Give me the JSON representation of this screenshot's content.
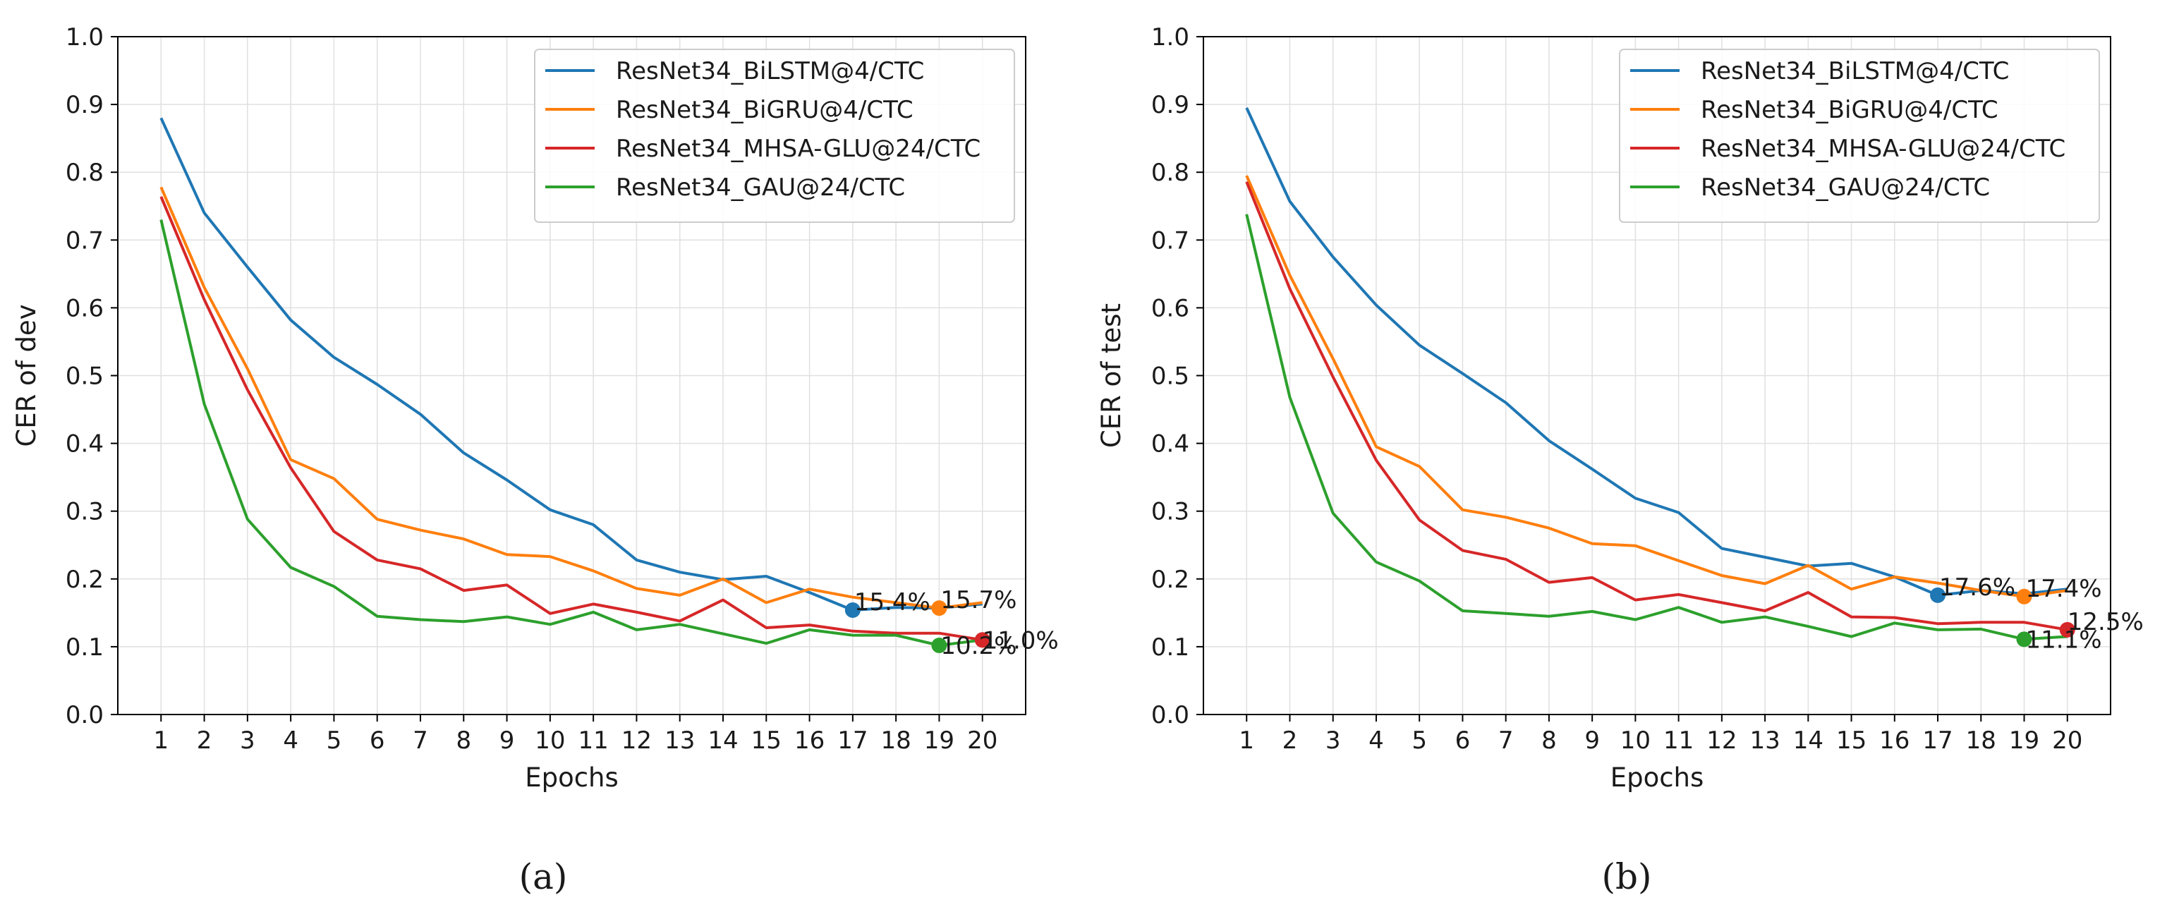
{
  "figure": {
    "subcaptions": [
      "(a)",
      "(b)"
    ]
  },
  "colors": {
    "ResNet34_BiLSTM@4/CTC": "#1f77b4",
    "ResNet34_BiGRU@4/CTC": "#ff7f0e",
    "ResNet34_MHSA-GLU@24/CTC": "#d62728",
    "ResNet34_GAU@24/CTC": "#2ca02c",
    "grid": "#e0e0e0",
    "axes": "#000000"
  },
  "chart_data": [
    {
      "type": "line",
      "title": "",
      "xlabel": "Epochs",
      "ylabel": "CER of dev",
      "ylim": [
        0.0,
        1.0
      ],
      "xlim": [
        0,
        21
      ],
      "grid": true,
      "legend_position": "top-right",
      "x": [
        1,
        2,
        3,
        4,
        5,
        6,
        7,
        8,
        9,
        10,
        11,
        12,
        13,
        14,
        15,
        16,
        17,
        18,
        19,
        20
      ],
      "yticks": [
        "0.0",
        "0.1",
        "0.2",
        "0.3",
        "0.4",
        "0.5",
        "0.6",
        "0.7",
        "0.8",
        "0.9",
        "1.0"
      ],
      "xticks": [
        "1",
        "2",
        "3",
        "4",
        "5",
        "6",
        "7",
        "8",
        "9",
        "10",
        "11",
        "12",
        "13",
        "14",
        "15",
        "16",
        "17",
        "18",
        "19",
        "20"
      ],
      "series": [
        {
          "name": "ResNet34_BiLSTM@4/CTC",
          "values": [
            0.88,
            0.74,
            0.66,
            0.582,
            0.527,
            0.487,
            0.443,
            0.386,
            0.346,
            0.302,
            0.28,
            0.228,
            0.21,
            0.199,
            0.204,
            0.18,
            0.154,
            0.158,
            0.157,
            0.163
          ],
          "best": {
            "epoch": 17,
            "value": 0.154,
            "label": "15.4%"
          }
        },
        {
          "name": "ResNet34_BiGRU@4/CTC",
          "values": [
            0.778,
            0.63,
            0.51,
            0.376,
            0.348,
            0.288,
            0.272,
            0.259,
            0.236,
            0.233,
            0.212,
            0.186,
            0.176,
            0.2,
            0.165,
            0.185,
            0.173,
            0.165,
            0.157,
            0.165
          ],
          "best": {
            "epoch": 19,
            "value": 0.157,
            "label": "15.7%"
          }
        },
        {
          "name": "ResNet34_MHSA-GLU@24/CTC",
          "values": [
            0.764,
            0.612,
            0.479,
            0.364,
            0.27,
            0.228,
            0.215,
            0.183,
            0.191,
            0.149,
            0.163,
            0.151,
            0.138,
            0.169,
            0.128,
            0.132,
            0.123,
            0.12,
            0.12,
            0.11
          ],
          "best": {
            "epoch": 20,
            "value": 0.11,
            "label": "11.0%"
          }
        },
        {
          "name": "ResNet34_GAU@24/CTC",
          "values": [
            0.73,
            0.458,
            0.288,
            0.217,
            0.189,
            0.145,
            0.14,
            0.137,
            0.144,
            0.133,
            0.151,
            0.125,
            0.133,
            0.119,
            0.105,
            0.125,
            0.117,
            0.117,
            0.102,
            0.11
          ],
          "best": {
            "epoch": 19,
            "value": 0.102,
            "label": "10.2%"
          }
        }
      ]
    },
    {
      "type": "line",
      "title": "",
      "xlabel": "Epochs",
      "ylabel": "CER of test",
      "ylim": [
        0.0,
        1.0
      ],
      "xlim": [
        0,
        21
      ],
      "grid": true,
      "legend_position": "top-right",
      "x": [
        1,
        2,
        3,
        4,
        5,
        6,
        7,
        8,
        9,
        10,
        11,
        12,
        13,
        14,
        15,
        16,
        17,
        18,
        19,
        20
      ],
      "yticks": [
        "0.0",
        "0.1",
        "0.2",
        "0.3",
        "0.4",
        "0.5",
        "0.6",
        "0.7",
        "0.8",
        "0.9",
        "1.0"
      ],
      "xticks": [
        "1",
        "2",
        "3",
        "4",
        "5",
        "6",
        "7",
        "8",
        "9",
        "10",
        "11",
        "12",
        "13",
        "14",
        "15",
        "16",
        "17",
        "18",
        "19",
        "20"
      ],
      "series": [
        {
          "name": "ResNet34_BiLSTM@4/CTC",
          "values": [
            0.895,
            0.757,
            0.675,
            0.604,
            0.545,
            0.503,
            0.46,
            0.404,
            0.362,
            0.319,
            0.298,
            0.245,
            0.232,
            0.219,
            0.223,
            0.203,
            0.176,
            0.183,
            0.178,
            0.185
          ],
          "best": {
            "epoch": 17,
            "value": 0.176,
            "label": "17.6%"
          }
        },
        {
          "name": "ResNet34_BiGRU@4/CTC",
          "values": [
            0.795,
            0.648,
            0.525,
            0.395,
            0.366,
            0.302,
            0.291,
            0.275,
            0.252,
            0.249,
            0.227,
            0.205,
            0.193,
            0.22,
            0.185,
            0.203,
            0.194,
            0.183,
            0.174,
            0.183
          ],
          "best": {
            "epoch": 19,
            "value": 0.174,
            "label": "17.4%"
          }
        },
        {
          "name": "ResNet34_MHSA-GLU@24/CTC",
          "values": [
            0.786,
            0.628,
            0.498,
            0.375,
            0.287,
            0.242,
            0.229,
            0.195,
            0.202,
            0.169,
            0.177,
            0.165,
            0.153,
            0.18,
            0.144,
            0.143,
            0.134,
            0.136,
            0.136,
            0.125
          ],
          "best": {
            "epoch": 20,
            "value": 0.125,
            "label": "12.5%"
          }
        },
        {
          "name": "ResNet34_GAU@24/CTC",
          "values": [
            0.738,
            0.468,
            0.297,
            0.225,
            0.197,
            0.153,
            0.149,
            0.145,
            0.152,
            0.14,
            0.158,
            0.136,
            0.144,
            0.13,
            0.115,
            0.135,
            0.125,
            0.126,
            0.111,
            0.115
          ],
          "best": {
            "epoch": 19,
            "value": 0.111,
            "label": "11.1%"
          }
        }
      ]
    }
  ]
}
